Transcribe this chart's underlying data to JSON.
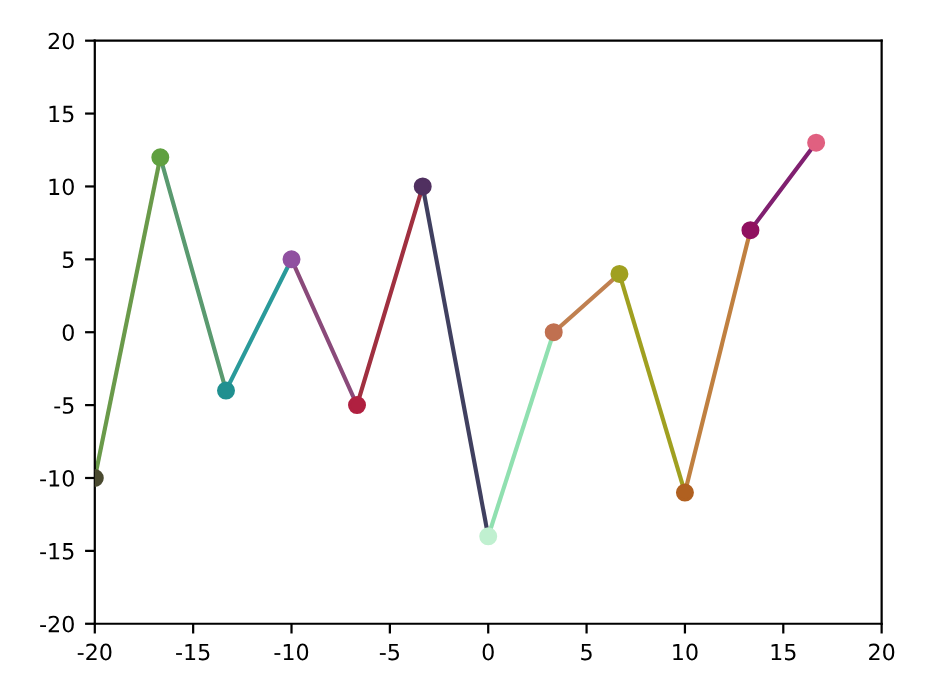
{
  "chart_data": {
    "type": "line",
    "xlim": [
      -20,
      20
    ],
    "xticks": [
      -20,
      -15,
      -10,
      -5,
      0,
      5,
      10,
      15,
      20
    ],
    "ylim": [
      -20,
      20
    ],
    "yticks": [
      -20,
      -15,
      -10,
      -5,
      0,
      5,
      10,
      15,
      20
    ],
    "grid": false,
    "series": [
      {
        "color": "#6a9a4a",
        "x": [
          -20,
          -16.67
        ],
        "values": [
          -10,
          12
        ]
      },
      {
        "color": "#5a9a70",
        "x": [
          -16.67,
          -13.33
        ],
        "values": [
          12,
          -4
        ]
      },
      {
        "color": "#2a9a9a",
        "x": [
          -13.33,
          -10
        ],
        "values": [
          -4,
          5
        ]
      },
      {
        "color": "#8a4a7a",
        "x": [
          -10,
          -6.67
        ],
        "values": [
          5,
          -5
        ]
      },
      {
        "color": "#a03040",
        "x": [
          -6.67,
          -3.33
        ],
        "values": [
          -5,
          10
        ]
      },
      {
        "color": "#404060",
        "x": [
          -3.33,
          0
        ],
        "values": [
          10,
          -14
        ]
      },
      {
        "color": "#90e0b0",
        "x": [
          0,
          3.33
        ],
        "values": [
          -14,
          0
        ]
      },
      {
        "color": "#c08050",
        "x": [
          3.33,
          6.67
        ],
        "values": [
          0,
          4
        ]
      },
      {
        "color": "#a0a020",
        "x": [
          6.67,
          10
        ],
        "values": [
          4,
          -11
        ]
      },
      {
        "color": "#c08040",
        "x": [
          10,
          13.33
        ],
        "values": [
          -11,
          7
        ]
      },
      {
        "color": "#802070",
        "x": [
          13.33,
          16.67
        ],
        "values": [
          7,
          13
        ]
      },
      {
        "type": "scatter",
        "marker": "circle",
        "x": [
          -20,
          -16.67,
          -13.33,
          -10,
          -6.67,
          -3.33,
          0,
          3.33,
          6.67,
          10,
          13.33,
          16.67
        ],
        "values": [
          -10,
          12,
          -4,
          5,
          -5,
          10,
          -14,
          0,
          4,
          -11,
          7,
          13
        ],
        "colors": [
          "#4a4a30",
          "#60a040",
          "#209090",
          "#9050a0",
          "#b02040",
          "#503060",
          "#c0f0d0",
          "#c07050",
          "#a0a020",
          "#b06020",
          "#901060",
          "#e06080"
        ]
      }
    ]
  }
}
